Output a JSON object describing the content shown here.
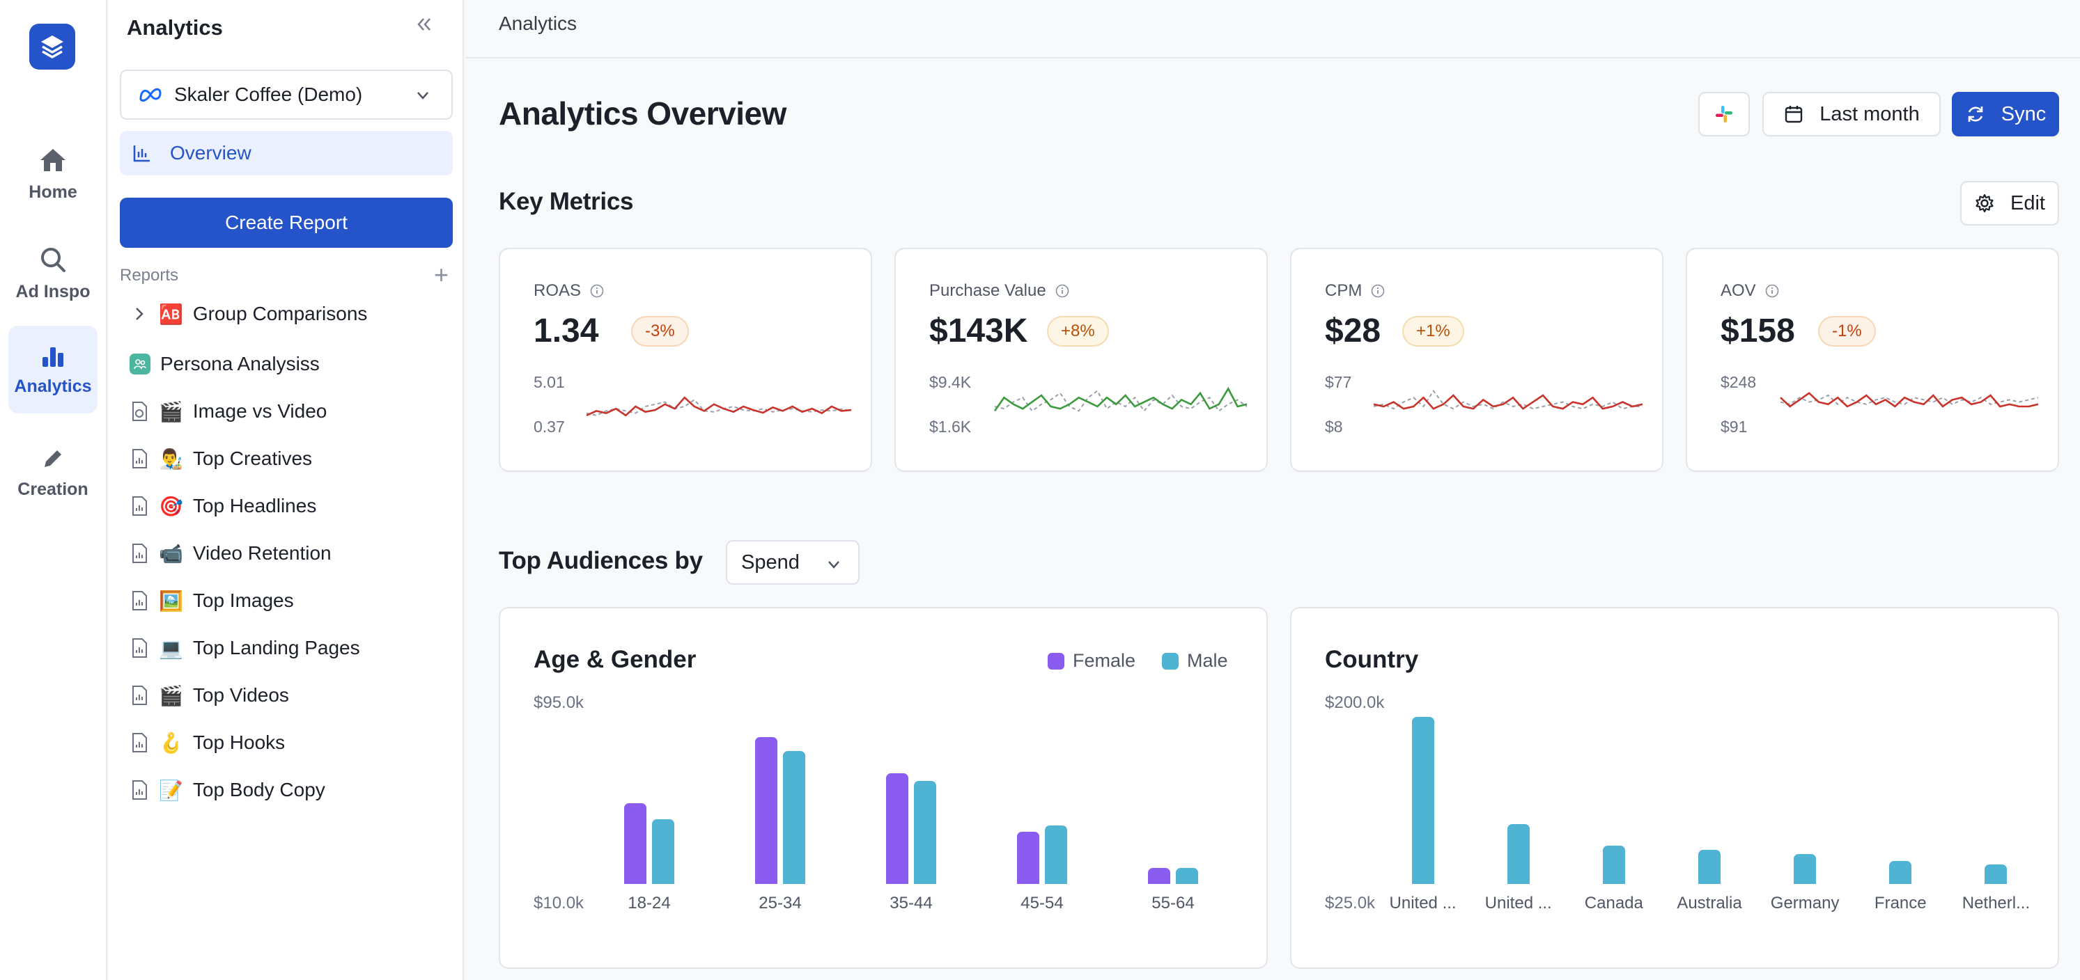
{
  "rail": {
    "items": [
      {
        "label": "Home",
        "icon": "home-icon"
      },
      {
        "label": "Ad Inspo",
        "icon": "search-icon"
      },
      {
        "label": "Analytics",
        "icon": "bar-chart-icon",
        "active": true
      },
      {
        "label": "Creation",
        "icon": "pencil-icon"
      }
    ]
  },
  "sidebar": {
    "title": "Analytics",
    "account": "Skaler Coffee (Demo)",
    "overview": "Overview",
    "create_report": "Create Report",
    "reports_heading": "Reports",
    "reports": [
      {
        "emoji": "🆎",
        "label": "Group Comparisons",
        "icon": "chevron-right-icon"
      },
      {
        "emoji": "",
        "label": "Persona Analysiss",
        "icon": "persona-icon"
      },
      {
        "emoji": "🎬",
        "label": "Image vs Video",
        "icon": "compare-icon"
      },
      {
        "emoji": "👨‍🎨",
        "label": "Top Creatives",
        "icon": "report-icon"
      },
      {
        "emoji": "🎯",
        "label": "Top Headlines",
        "icon": "report-icon"
      },
      {
        "emoji": "📹",
        "label": "Video Retention",
        "icon": "report-icon"
      },
      {
        "emoji": "🖼️",
        "label": "Top Images",
        "icon": "report-icon"
      },
      {
        "emoji": "💻",
        "label": "Top Landing Pages",
        "icon": "report-icon"
      },
      {
        "emoji": "🎬",
        "label": "Top Videos",
        "icon": "report-icon"
      },
      {
        "emoji": "🪝",
        "label": "Top Hooks",
        "icon": "report-icon"
      },
      {
        "emoji": "📝",
        "label": "Top Body Copy",
        "icon": "report-icon"
      }
    ]
  },
  "topbar": {
    "breadcrumb": "Analytics"
  },
  "header": {
    "title": "Analytics Overview",
    "date_range": "Last month",
    "sync": "Sync"
  },
  "key_metrics": {
    "title": "Key Metrics",
    "edit": "Edit",
    "cards": [
      {
        "label": "ROAS",
        "value": "1.34",
        "change": "-3%",
        "trend": "neg",
        "axis_top": "5.01",
        "axis_bottom": "0.37",
        "line_color": "#c8332b",
        "series": [
          0.3,
          0.4,
          0.35,
          0.45,
          0.3,
          0.5,
          0.38,
          0.42,
          0.55,
          0.45,
          0.7,
          0.5,
          0.4,
          0.55,
          0.45,
          0.38,
          0.5,
          0.42,
          0.36,
          0.48,
          0.4,
          0.5,
          0.38,
          0.45,
          0.35,
          0.5,
          0.4,
          0.42
        ],
        "compare": [
          0.35,
          0.3,
          0.4,
          0.45,
          0.4,
          0.35,
          0.5,
          0.55,
          0.6,
          0.45,
          0.5,
          0.65,
          0.4,
          0.38,
          0.45,
          0.5,
          0.42,
          0.4,
          0.45,
          0.38,
          0.42,
          0.45,
          0.4,
          0.38,
          0.42,
          0.4,
          0.44,
          0.4
        ]
      },
      {
        "label": "Purchase Value",
        "value": "$143K",
        "change": "+8%",
        "trend": "pos",
        "axis_top": "$9.4K",
        "axis_bottom": "$1.6K",
        "line_color": "#3a9a3c",
        "series": [
          0.4,
          0.7,
          0.55,
          0.45,
          0.6,
          0.75,
          0.5,
          0.45,
          0.55,
          0.7,
          0.6,
          0.5,
          0.7,
          0.55,
          0.75,
          0.5,
          0.6,
          0.7,
          0.55,
          0.45,
          0.65,
          0.55,
          0.8,
          0.45,
          0.55,
          0.9,
          0.5,
          0.55
        ],
        "compare": [
          0.5,
          0.45,
          0.6,
          0.7,
          0.4,
          0.55,
          0.65,
          0.8,
          0.5,
          0.4,
          0.7,
          0.85,
          0.45,
          0.6,
          0.5,
          0.7,
          0.4,
          0.65,
          0.55,
          0.75,
          0.5,
          0.45,
          0.6,
          0.7,
          0.4,
          0.55,
          0.65,
          0.5
        ]
      },
      {
        "label": "CPM",
        "value": "$28",
        "change": "+1%",
        "trend": "pos",
        "axis_top": "$77",
        "axis_bottom": "$8",
        "line_color": "#c8332b",
        "series": [
          0.55,
          0.5,
          0.6,
          0.45,
          0.5,
          0.7,
          0.45,
          0.55,
          0.75,
          0.5,
          0.45,
          0.65,
          0.5,
          0.55,
          0.7,
          0.45,
          0.6,
          0.75,
          0.5,
          0.45,
          0.6,
          0.55,
          0.7,
          0.45,
          0.5,
          0.6,
          0.5,
          0.55
        ],
        "compare": [
          0.5,
          0.55,
          0.45,
          0.6,
          0.7,
          0.5,
          0.85,
          0.55,
          0.45,
          0.6,
          0.5,
          0.55,
          0.45,
          0.6,
          0.5,
          0.55,
          0.45,
          0.5,
          0.55,
          0.6,
          0.5,
          0.45,
          0.55,
          0.5,
          0.6,
          0.45,
          0.5,
          0.5
        ]
      },
      {
        "label": "AOV",
        "value": "$158",
        "change": "-1%",
        "trend": "neg",
        "axis_top": "$248",
        "axis_bottom": "$91",
        "line_color": "#c8332b",
        "series": [
          0.7,
          0.5,
          0.65,
          0.8,
          0.6,
          0.55,
          0.7,
          0.5,
          0.6,
          0.75,
          0.55,
          0.65,
          0.5,
          0.7,
          0.6,
          0.55,
          0.75,
          0.5,
          0.65,
          0.7,
          0.55,
          0.6,
          0.75,
          0.5,
          0.55,
          0.5,
          0.5,
          0.55
        ],
        "compare": [
          0.6,
          0.55,
          0.7,
          0.6,
          0.65,
          0.75,
          0.55,
          0.7,
          0.6,
          0.55,
          0.65,
          0.7,
          0.6,
          0.55,
          0.7,
          0.65,
          0.6,
          0.7,
          0.55,
          0.65,
          0.6,
          0.7,
          0.55,
          0.6,
          0.65,
          0.6,
          0.65,
          0.7
        ]
      }
    ]
  },
  "audiences": {
    "title": "Top Audiences by",
    "metric": "Spend"
  },
  "chart_data": [
    {
      "type": "bar",
      "title": "Age & Gender",
      "categories": [
        "18-24",
        "25-34",
        "35-44",
        "45-54",
        "55-64"
      ],
      "series": [
        {
          "name": "Female",
          "color": "#8a5cf0",
          "values": [
            50000,
            83000,
            65000,
            36000,
            18000
          ]
        },
        {
          "name": "Male",
          "color": "#4fb3d4",
          "values": [
            42000,
            76000,
            61000,
            39000,
            18000
          ]
        }
      ],
      "ytick_labels": [
        "$95.0k",
        "$10.0k"
      ],
      "ylim": [
        10000,
        95000
      ]
    },
    {
      "type": "bar",
      "title": "Country",
      "categories": [
        "United ...",
        "United ...",
        "Canada",
        "Australia",
        "Germany",
        "France",
        "Netherl..."
      ],
      "series": [
        {
          "name": "",
          "color": "#4fb3d4",
          "values": [
            195000,
            70000,
            45000,
            40000,
            35000,
            27000,
            23000
          ]
        }
      ],
      "ytick_labels": [
        "$200.0k",
        "$25.0k"
      ],
      "ylim": [
        0,
        200000
      ]
    }
  ]
}
